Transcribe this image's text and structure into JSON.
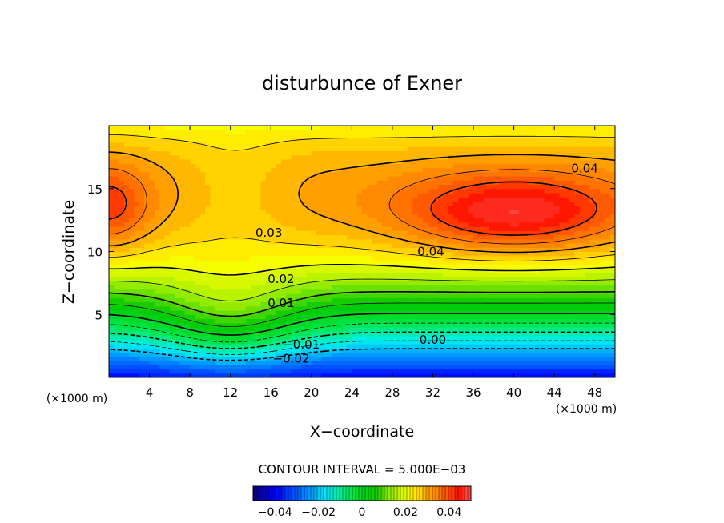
{
  "chart_data": {
    "type": "heatmap",
    "title": "disturbunce of Exner",
    "xlabel": "X−coordinate",
    "ylabel": "Z−coordinate",
    "x_unit_left": "(×1000 m)",
    "x_unit_right": "(×1000 m)",
    "xlim": [
      0,
      50
    ],
    "ylim": [
      0,
      20
    ],
    "x_ticks": [
      4,
      8,
      12,
      16,
      20,
      24,
      28,
      32,
      36,
      40,
      44,
      48
    ],
    "x_tick_labels": [
      "4",
      "8",
      "12",
      "16",
      "20",
      "24",
      "28",
      "32",
      "36",
      "40",
      "44",
      "48"
    ],
    "y_ticks": [
      5,
      10,
      15
    ],
    "y_tick_labels": [
      "5",
      "10",
      "15"
    ],
    "contour_interval_label": "CONTOUR INTERVAL = 5.000E−03",
    "contour_levels": [
      -0.02,
      -0.015,
      -0.01,
      -0.005,
      0.0,
      0.005,
      0.01,
      0.015,
      0.02,
      0.025,
      0.03,
      0.035,
      0.04
    ],
    "contour_labels": [
      {
        "text": "0.04",
        "x": 47.0,
        "y": 16.6
      },
      {
        "text": "0.04",
        "x": 31.8,
        "y": 10.0
      },
      {
        "text": "0.03",
        "x": 15.8,
        "y": 11.5
      },
      {
        "text": "0.02",
        "x": 17.0,
        "y": 7.8
      },
      {
        "text": "0.01",
        "x": 17.0,
        "y": 5.9
      },
      {
        "text": "0.00",
        "x": 32.0,
        "y": 3.0
      },
      {
        "text": "−0.01",
        "x": 19.0,
        "y": 2.6
      },
      {
        "text": "−0.02",
        "x": 18.0,
        "y": 1.5
      }
    ],
    "value_range": [
      -0.05,
      0.05
    ],
    "colorbar_ticks": [
      -0.04,
      -0.02,
      0,
      0.02,
      0.04
    ],
    "colorbar_labels": [
      "−0.04",
      "−0.02",
      "0",
      "0.02",
      "0.04"
    ]
  }
}
